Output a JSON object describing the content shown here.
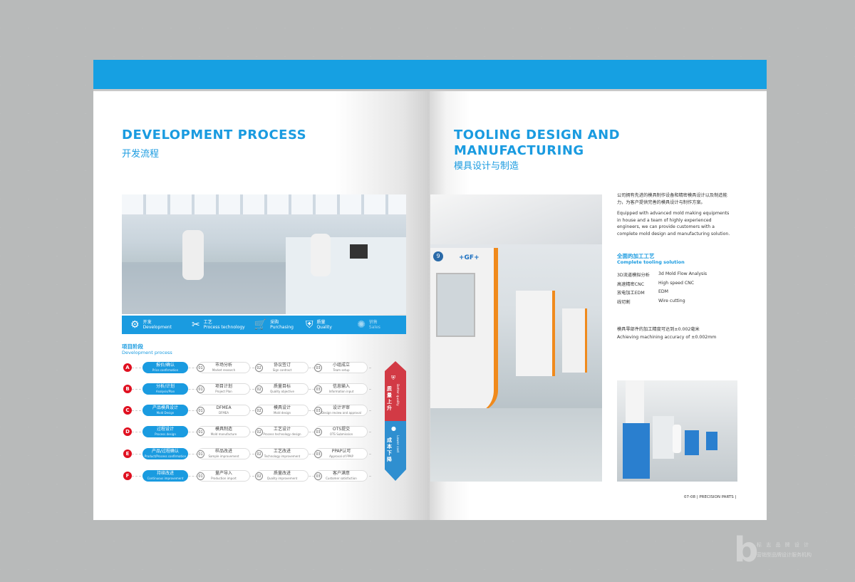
{
  "left_page": {
    "title": "DEVELOPMENT PROCESS",
    "title_cn": "开发流程",
    "steps": [
      {
        "icon": "gear-icon",
        "cn": "开发",
        "en": "Development"
      },
      {
        "icon": "tools-icon",
        "cn": "工艺",
        "en": "Process technology"
      },
      {
        "icon": "cart-icon",
        "cn": "采购",
        "en": "Purchasing"
      },
      {
        "icon": "shield-check-icon",
        "cn": "质量",
        "en": "Quality"
      },
      {
        "icon": "sales-icon",
        "cn": "销售",
        "en": "Sales"
      }
    ],
    "section_cn": "项目阶段",
    "section_en": "Development process",
    "rows": [
      {
        "letter": "A",
        "cn": "报价/确认",
        "en": "Price confirmation",
        "items": [
          {
            "n": "01",
            "cn": "市场分析",
            "en": "Market research"
          },
          {
            "n": "02",
            "cn": "协议签订",
            "en": "Sign contract"
          },
          {
            "n": "03",
            "cn": "小组成立",
            "en": "Team setup"
          }
        ]
      },
      {
        "letter": "B",
        "cn": "分析/计划",
        "en": "Analysis/Plan",
        "items": [
          {
            "n": "01",
            "cn": "项目计划",
            "en": "Project Plan"
          },
          {
            "n": "02",
            "cn": "质量目标",
            "en": "Quality objective"
          },
          {
            "n": "03",
            "cn": "信息输入",
            "en": "Information input"
          }
        ]
      },
      {
        "letter": "C",
        "cn": "产品模具设计",
        "en": "Mold Design",
        "items": [
          {
            "n": "01",
            "cn": "DFMEA",
            "en": "DFMEA"
          },
          {
            "n": "02",
            "cn": "模具设计",
            "en": "Mold design"
          },
          {
            "n": "03",
            "cn": "设计评审",
            "en": "Design review and approval"
          }
        ]
      },
      {
        "letter": "D",
        "cn": "过程设计",
        "en": "Process design",
        "items": [
          {
            "n": "01",
            "cn": "模具制造",
            "en": "Mold manufacture"
          },
          {
            "n": "02",
            "cn": "工艺设计",
            "en": "Process technology design"
          },
          {
            "n": "03",
            "cn": "OTS提交",
            "en": "OTS Submission"
          }
        ]
      },
      {
        "letter": "E",
        "cn": "产品/过程确认",
        "en": "Product/Process confirmation",
        "items": [
          {
            "n": "01",
            "cn": "样品改进",
            "en": "Sample improvement"
          },
          {
            "n": "02",
            "cn": "工艺改进",
            "en": "Technology improvement"
          },
          {
            "n": "03",
            "cn": "PPAP认可",
            "en": "Approval of PPAP"
          }
        ]
      },
      {
        "letter": "F",
        "cn": "持续改进",
        "en": "Continuous improvement",
        "items": [
          {
            "n": "01",
            "cn": "量产导入",
            "en": "Production import"
          },
          {
            "n": "02",
            "cn": "质量改进",
            "en": "Quality improvement"
          },
          {
            "n": "03",
            "cn": "客户满意",
            "en": "Customer satisfaction"
          }
        ]
      }
    ],
    "ribbon": {
      "top_cn": "质量上升",
      "top_en": "Better quality",
      "bottom_cn": "成本下降",
      "bottom_en": "Lower cost",
      "top_color": "#d23a45",
      "bottom_color": "#2f8fd0"
    }
  },
  "right_page": {
    "title_line1": "TOOLING DESIGN AND",
    "title_line2": "MANUFACTURING",
    "title_cn": "模具设计与制造",
    "intro_cn": "公司拥有先进的模具制作设备和精密模具设计以及制造能力，为客户提供完善的模具设计与制作方案。",
    "intro_en": "Equipped with advanced mold making equipments in house and a team of highly experienced engineers, we can provide customers with a complete mold design and manufacturing solution.",
    "solution_cn": "全面的加工工艺",
    "solution_en": "Complete tooling solution",
    "capabilities": [
      {
        "cn": "3D流道模拟分析",
        "en": "3d Mold Flow Analysis"
      },
      {
        "cn": "高速精密CNC",
        "en": "High speed CNC"
      },
      {
        "cn": "放电加工EDM",
        "en": "EDM"
      },
      {
        "cn": "线切割",
        "en": "Wire cutting"
      }
    ],
    "accuracy_cn": "模具零部件的加工精度可达到±0.002毫米",
    "accuracy_en": "Achieving machining accuracy of ±0.002mm",
    "machine_label": "+GF+",
    "machine_number": "9",
    "footer": "07-08 | PRECISION PARTS |"
  },
  "watermark": {
    "line1": "标 志 品 牌 设 计",
    "line2": "营销型品牌设计服务机构"
  },
  "colors": {
    "accent": "#1a9be0",
    "band": "#16a0e2",
    "letter_red": "#e01020"
  }
}
